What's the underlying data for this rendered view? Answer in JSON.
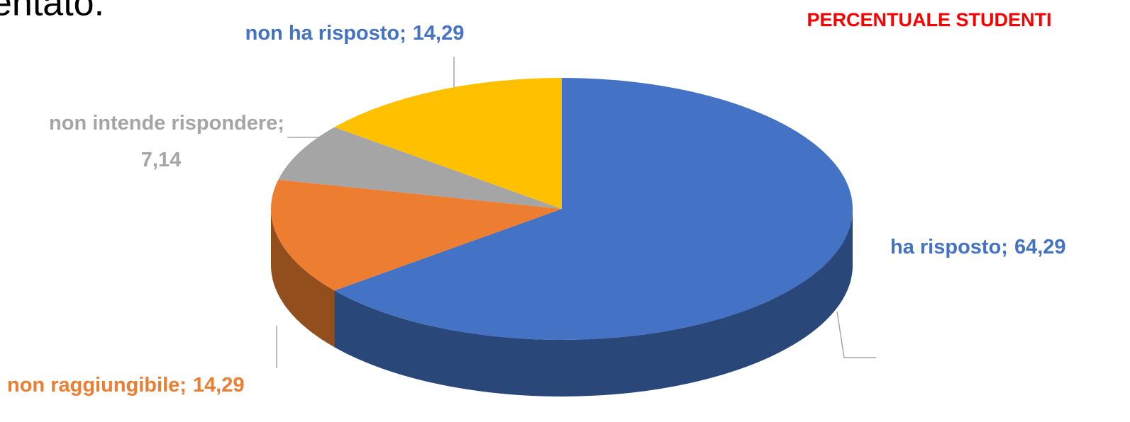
{
  "slide_text": "entato.",
  "chart_data": {
    "type": "pie3d",
    "title": "PERCENTUALE STUDENTI",
    "categories": [
      "ha risposto;",
      "non raggiungibile;",
      "non intende rispondere;",
      "non ha risposto;"
    ],
    "values": [
      64.29,
      14.29,
      7.14,
      14.29
    ],
    "value_labels": [
      "64,29",
      "14,29",
      "7,14",
      "14,29"
    ],
    "colors": [
      "#4472c4",
      "#ed7d31",
      "#a5a5a5",
      "#ffc000"
    ]
  }
}
